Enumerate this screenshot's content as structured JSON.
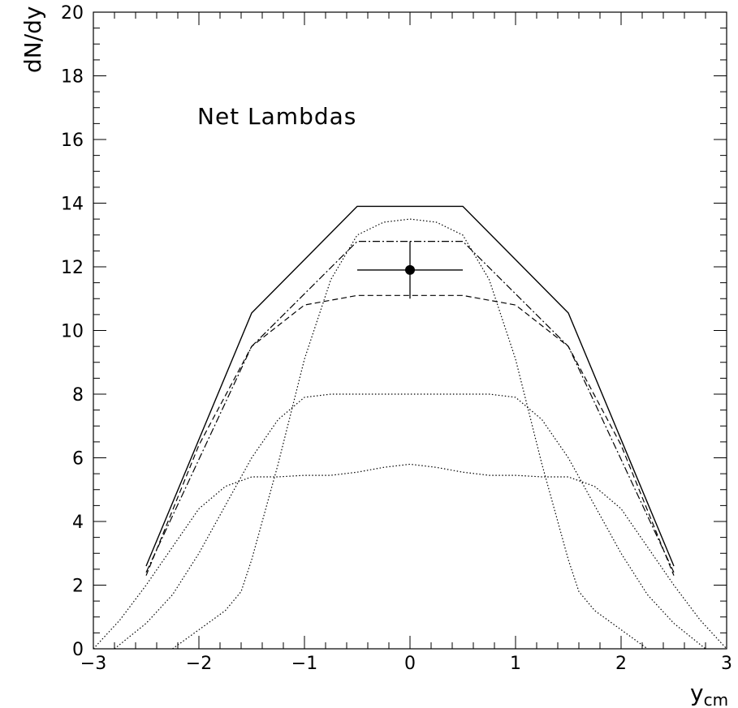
{
  "chart_data": {
    "type": "line",
    "title": "",
    "xlabel": "y",
    "xlabel_sub": "cm",
    "ylabel": "dN/dy",
    "xlim": [
      -3,
      3
    ],
    "ylim": [
      0,
      20
    ],
    "x_ticks": [
      -3,
      -2,
      -1,
      0,
      1,
      2,
      3
    ],
    "x_tick_labels": [
      "−3",
      "−2",
      "−1",
      "0",
      "1",
      "2",
      "3"
    ],
    "y_ticks": [
      0,
      2,
      4,
      6,
      8,
      10,
      12,
      14,
      16,
      18,
      20
    ],
    "y_tick_labels": [
      "0",
      "2",
      "4",
      "6",
      "8",
      "10",
      "12",
      "14",
      "16",
      "18",
      "20"
    ],
    "grid": false,
    "annotation": "Net Lambdas",
    "series": [
      {
        "style": "solid",
        "x": [
          -2.5,
          -1.5,
          -0.5,
          0.5,
          1.5,
          2.5
        ],
        "y": [
          2.6,
          10.55,
          13.9,
          13.9,
          10.55,
          2.6
        ]
      },
      {
        "style": "dashdot",
        "x": [
          -2.5,
          -1.5,
          -0.5,
          0.5,
          1.5,
          2.5
        ],
        "y": [
          2.4,
          9.5,
          12.8,
          12.8,
          9.5,
          2.4
        ]
      },
      {
        "style": "dashed",
        "x": [
          -2.5,
          -2.0,
          -1.5,
          -1.0,
          -0.5,
          0.0,
          0.5,
          1.0,
          1.5,
          2.0,
          2.5
        ],
        "y": [
          2.3,
          6.4,
          9.5,
          10.8,
          11.1,
          11.1,
          11.1,
          10.8,
          9.5,
          6.4,
          2.3
        ]
      },
      {
        "style": "dotted",
        "x": [
          -2.25,
          -2.0,
          -1.75,
          -1.6,
          -1.5,
          -1.25,
          -1.0,
          -0.75,
          -0.5,
          -0.25,
          0.0,
          0.25,
          0.5,
          0.75,
          1.0,
          1.25,
          1.5,
          1.6,
          1.75,
          2.0,
          2.25
        ],
        "y": [
          0.0,
          0.6,
          1.2,
          1.8,
          2.8,
          5.8,
          9.1,
          11.6,
          13.0,
          13.4,
          13.5,
          13.4,
          13.0,
          11.6,
          9.1,
          5.8,
          2.8,
          1.8,
          1.2,
          0.6,
          0.0
        ]
      },
      {
        "style": "dotted",
        "x": [
          -2.8,
          -2.5,
          -2.25,
          -2.0,
          -1.75,
          -1.5,
          -1.25,
          -1.0,
          -0.75,
          -0.5,
          -0.25,
          0.0,
          0.25,
          0.5,
          0.75,
          1.0,
          1.25,
          1.5,
          1.75,
          2.0,
          2.25,
          2.5,
          2.8
        ],
        "y": [
          0.0,
          0.8,
          1.7,
          3.0,
          4.5,
          6.0,
          7.2,
          7.9,
          8.0,
          8.0,
          8.0,
          8.0,
          8.0,
          8.0,
          8.0,
          7.9,
          7.2,
          6.0,
          4.5,
          3.0,
          1.7,
          0.8,
          0.0
        ]
      },
      {
        "style": "dotted",
        "x": [
          -3.0,
          -2.75,
          -2.5,
          -2.25,
          -2.0,
          -1.75,
          -1.5,
          -1.25,
          -1.0,
          -0.75,
          -0.5,
          -0.25,
          0.0,
          0.25,
          0.5,
          0.75,
          1.0,
          1.25,
          1.5,
          1.75,
          2.0,
          2.25,
          2.5,
          2.75,
          3.0
        ],
        "y": [
          0.0,
          0.9,
          2.0,
          3.2,
          4.4,
          5.1,
          5.4,
          5.4,
          5.45,
          5.45,
          5.55,
          5.7,
          5.8,
          5.7,
          5.55,
          5.45,
          5.45,
          5.4,
          5.4,
          5.1,
          4.4,
          3.2,
          2.0,
          0.9,
          0.0
        ]
      }
    ],
    "data_point": {
      "x": 0.0,
      "y": 11.9,
      "x_err": 0.5,
      "y_err": 0.9
    }
  }
}
